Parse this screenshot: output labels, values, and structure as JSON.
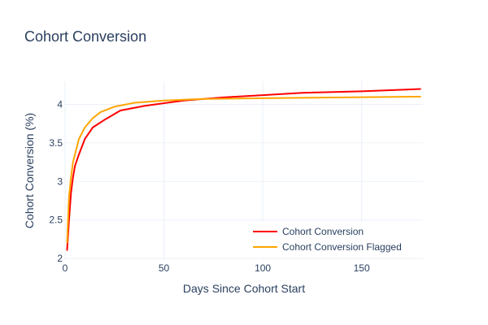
{
  "chart_data": {
    "type": "line",
    "title": "Cohort Conversion",
    "x_label": "Days Since Cohort Start",
    "y_label": "Cohort Conversion (%)",
    "xlim": [
      0,
      181
    ],
    "ylim": [
      1.98,
      4.3
    ],
    "xticks": [
      0,
      50,
      100,
      150
    ],
    "yticks": [
      2,
      2.5,
      3,
      3.5,
      4
    ],
    "grid": true,
    "legend": "bottom-right",
    "series": [
      {
        "name": "Cohort Conversion",
        "color": "#ff0000",
        "x": [
          1,
          2,
          3,
          4,
          5,
          7,
          10,
          14,
          20,
          28,
          40,
          60,
          80,
          100,
          120,
          150,
          180
        ],
        "values": [
          2.1,
          2.5,
          2.85,
          3.05,
          3.2,
          3.35,
          3.55,
          3.7,
          3.8,
          3.92,
          3.98,
          4.05,
          4.09,
          4.12,
          4.15,
          4.17,
          4.2
        ]
      },
      {
        "name": "Cohort Conversion Flagged",
        "color": "#ffa500",
        "x": [
          1,
          2,
          3,
          4,
          5,
          7,
          10,
          14,
          18,
          25,
          35,
          50,
          70,
          100,
          140,
          180
        ],
        "values": [
          2.2,
          2.8,
          3.05,
          3.25,
          3.35,
          3.55,
          3.7,
          3.82,
          3.9,
          3.97,
          4.02,
          4.05,
          4.07,
          4.08,
          4.09,
          4.1
        ]
      }
    ]
  }
}
